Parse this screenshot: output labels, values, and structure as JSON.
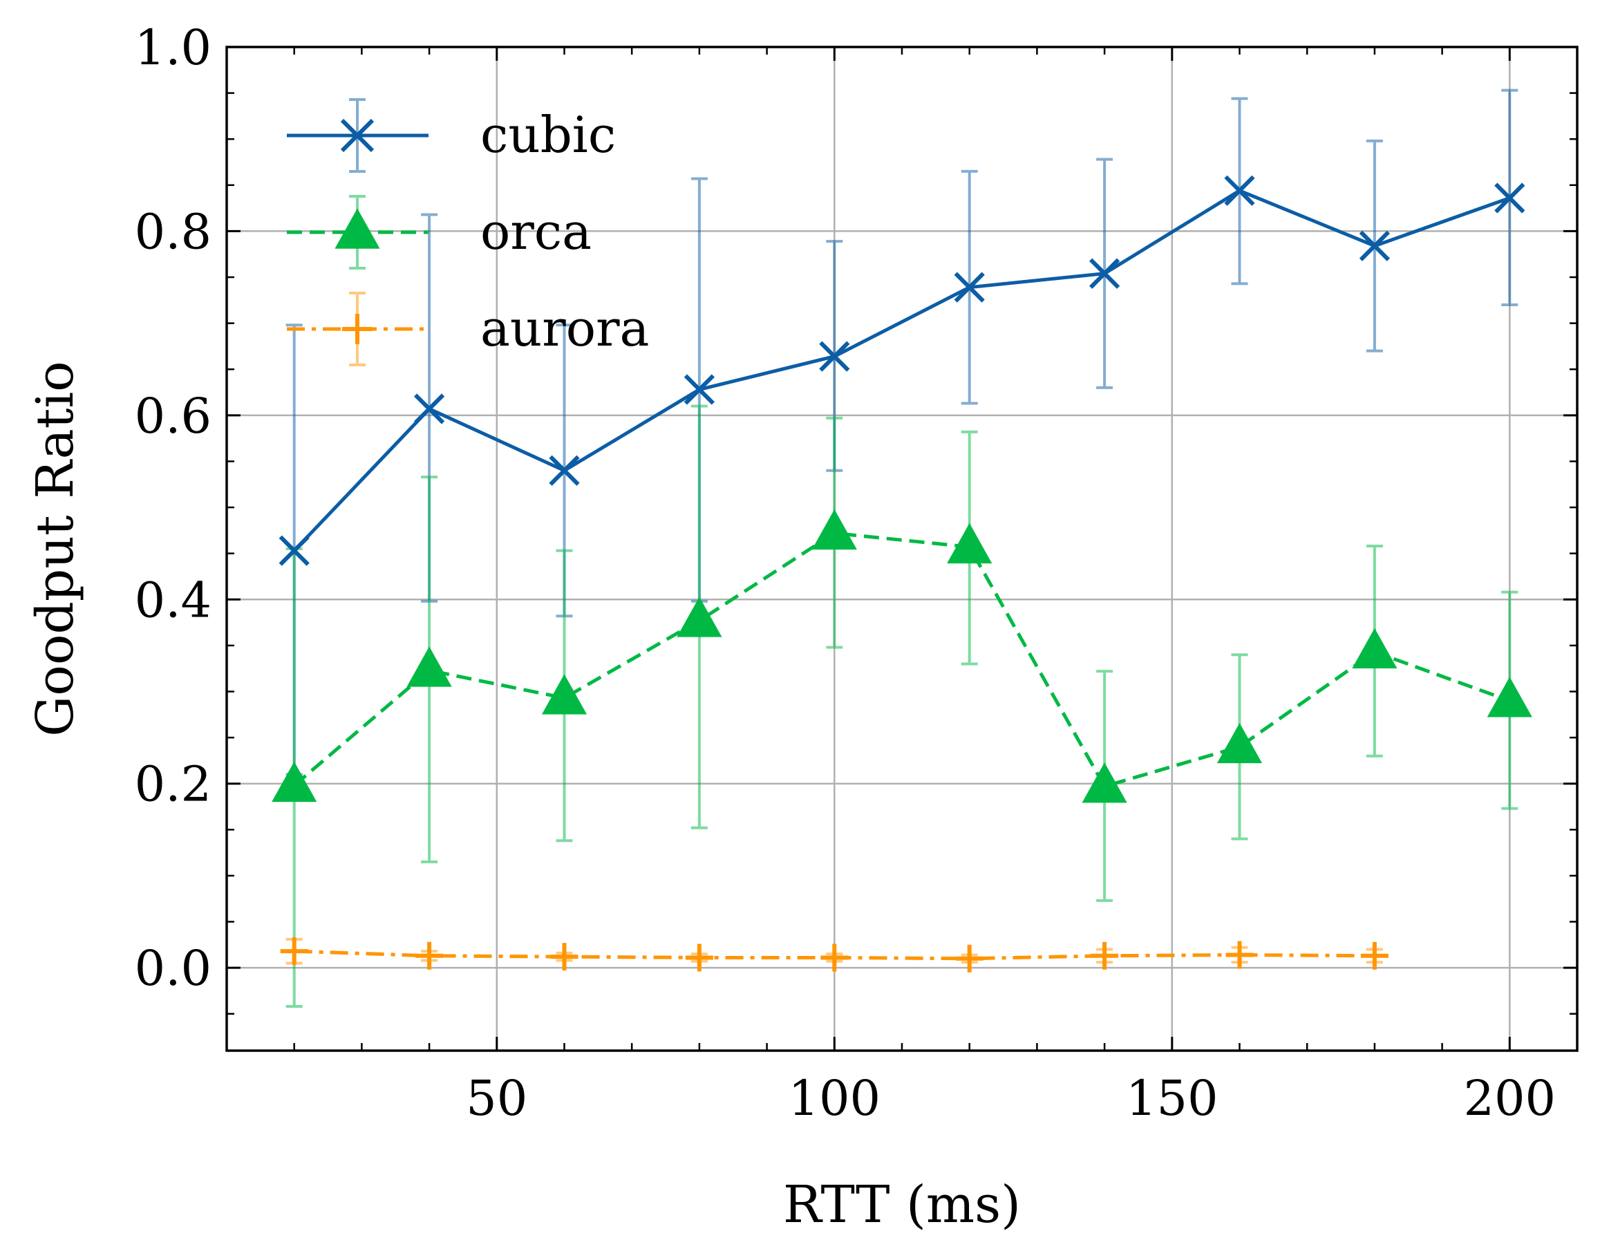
{
  "chart_data": {
    "type": "line",
    "title": "",
    "xlabel": "RTT (ms)",
    "ylabel": "Goodput Ratio",
    "xlim": [
      10,
      210
    ],
    "ylim": [
      -0.09,
      1.0
    ],
    "xticks": [
      50,
      100,
      150,
      200
    ],
    "xtick_labels": [
      "50",
      "100",
      "150",
      "200"
    ],
    "yticks": [
      0.0,
      0.2,
      0.4,
      0.6,
      0.8,
      1.0
    ],
    "ytick_labels": [
      "0.0",
      "0.2",
      "0.4",
      "0.6",
      "0.8",
      "1.0"
    ],
    "grid": true,
    "legend_position": "top-left",
    "series": [
      {
        "name": "cubic",
        "color": "#0C5DA5",
        "line": "solid",
        "marker": "x",
        "x": [
          20,
          40,
          60,
          80,
          100,
          120,
          140,
          160,
          180,
          200
        ],
        "y": [
          0.453,
          0.607,
          0.54,
          0.628,
          0.664,
          0.739,
          0.754,
          0.844,
          0.784,
          0.836
        ],
        "yerr_low": [
          0.21,
          0.398,
          0.382,
          0.398,
          0.54,
          0.613,
          0.63,
          0.743,
          0.67,
          0.72
        ],
        "yerr_high": [
          0.698,
          0.818,
          0.698,
          0.857,
          0.789,
          0.865,
          0.878,
          0.944,
          0.898,
          0.953
        ]
      },
      {
        "name": "orca",
        "color": "#00B945",
        "line": "dashed",
        "marker": "triangle",
        "x": [
          20,
          40,
          60,
          80,
          100,
          120,
          140,
          160,
          180,
          200
        ],
        "y": [
          0.198,
          0.323,
          0.293,
          0.377,
          0.472,
          0.457,
          0.197,
          0.24,
          0.343,
          0.29
        ],
        "yerr_low": [
          -0.042,
          0.115,
          0.138,
          0.152,
          0.348,
          0.33,
          0.073,
          0.14,
          0.23,
          0.173
        ],
        "yerr_high": [
          0.455,
          0.533,
          0.453,
          0.61,
          0.597,
          0.582,
          0.322,
          0.34,
          0.458,
          0.408
        ]
      },
      {
        "name": "aurora",
        "color": "#FF9500",
        "line": "dashdot",
        "marker": "plus",
        "x": [
          20,
          40,
          60,
          80,
          100,
          120,
          140,
          160,
          180
        ],
        "y": [
          0.018,
          0.013,
          0.012,
          0.011,
          0.011,
          0.01,
          0.013,
          0.014,
          0.013
        ],
        "yerr_low": [
          0.005,
          0.008,
          0.008,
          0.007,
          0.007,
          0.006,
          0.006,
          0.006,
          0.006
        ],
        "yerr_high": [
          0.031,
          0.018,
          0.016,
          0.015,
          0.015,
          0.014,
          0.02,
          0.022,
          0.02
        ]
      }
    ]
  }
}
